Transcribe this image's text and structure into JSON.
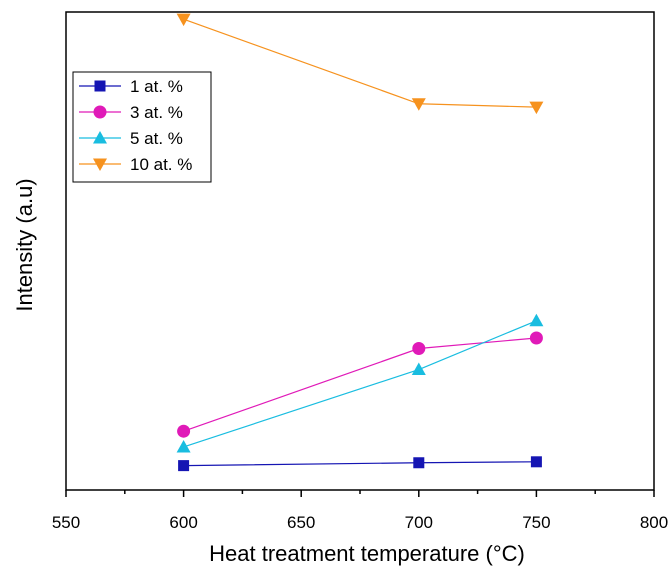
{
  "chart_data": {
    "type": "line",
    "title": "",
    "xlabel": "Heat treatment temperature (°C)",
    "ylabel": "Intensity (a.u)",
    "xlim": [
      550,
      800
    ],
    "ylim": [
      0,
      100
    ],
    "x_ticks": [
      550,
      600,
      650,
      700,
      750,
      800
    ],
    "x_tick_labels": [
      "550",
      "600",
      "650",
      "700",
      "750",
      "800"
    ],
    "y_tick_labels_shown": false,
    "grid": false,
    "legend_placement": "top-left",
    "x": [
      600,
      700,
      750
    ],
    "series": [
      {
        "name": "1 at. %",
        "values": [
          5.1,
          5.7,
          5.9
        ],
        "color": "#1515b3",
        "marker": "square"
      },
      {
        "name": "3 at. %",
        "values": [
          12.3,
          29.6,
          31.8
        ],
        "color": "#e01ab8",
        "marker": "circle"
      },
      {
        "name": "5 at. %",
        "values": [
          9.0,
          25.2,
          35.4
        ],
        "color": "#19bde0",
        "marker": "triangle-up"
      },
      {
        "name": "10 at. %",
        "values": [
          98.5,
          80.8,
          80.1
        ],
        "color": "#f6921e",
        "marker": "triangle-down"
      }
    ]
  }
}
